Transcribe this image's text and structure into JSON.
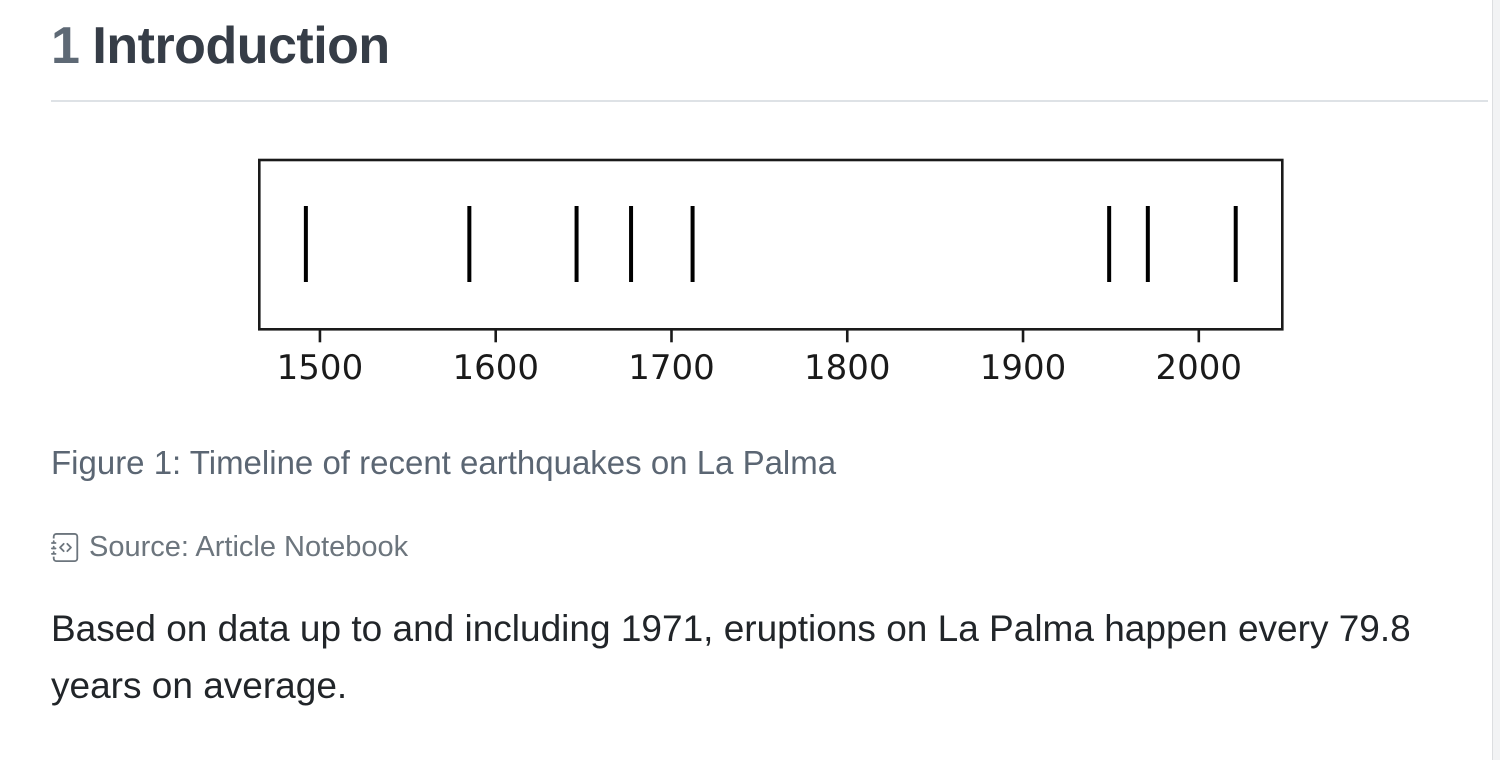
{
  "header": {
    "section_number": "1",
    "title": "Introduction",
    "number_color": "#5e6975",
    "title_color": "#363d47",
    "rule_color": "#dee2e6"
  },
  "figure": {
    "caption": "Figure 1: Timeline of recent earthquakes on La Palma",
    "caption_color": "#5b6673",
    "source": {
      "icon": "journal-code-icon",
      "label": "Source: Article Notebook",
      "color": "#6c757d"
    }
  },
  "chart_data": {
    "type": "eventplot",
    "title": "",
    "xlabel": "",
    "ylabel": "",
    "description": "Timeline of recent earthquakes on La Palma; one vertical black tick per event year",
    "events": [
      1492,
      1585,
      1646,
      1677,
      1712,
      1949,
      1971,
      2021
    ],
    "x_ticks": [
      1500,
      1600,
      1700,
      1800,
      1900,
      2000
    ],
    "xlim": [
      1465.5,
      2047.5
    ],
    "grid": false,
    "legend": false,
    "line_color": "#000000",
    "frame_color": "#1a1a1a",
    "tick_label_color": "#1a1a1a"
  },
  "paragraph": {
    "text": "Based on data up to and including 1971, eruptions on La Palma happen every 79.8 years on average.",
    "color": "#212529"
  }
}
